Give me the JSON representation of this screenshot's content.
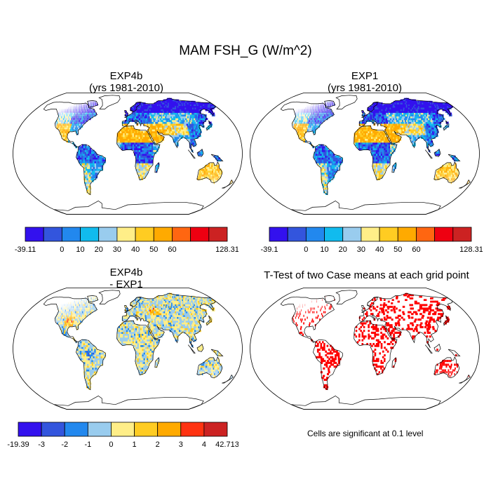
{
  "title": "MAM FSH_G (W/m^2)",
  "panels": [
    {
      "title": "EXP4b",
      "subtitle": "(yrs 1981-2010)"
    },
    {
      "title": "EXP1",
      "subtitle": "(yrs 1981-2010)"
    },
    {
      "title": "EXP4b",
      "subtitle": "- EXP1"
    },
    {
      "title": "T-Test of two Case means at each grid point",
      "subtitle": ""
    }
  ],
  "ttest_note": "Cells are significant at 0.1 level",
  "colorbars": [
    {
      "colors": [
        "#3311ee",
        "#3355dd",
        "#2288ee",
        "#11bbee",
        "#99ccee",
        "#ffee88",
        "#ffcc22",
        "#ffaa00",
        "#ff6611",
        "#ee0011",
        "#cc2222"
      ],
      "labels": [
        "-39.11",
        "0",
        "10",
        "20",
        "30",
        "40",
        "50",
        "60",
        "128.31"
      ]
    },
    {
      "colors": [
        "#3311ee",
        "#3355dd",
        "#2288ee",
        "#11bbee",
        "#99ccee",
        "#ffee88",
        "#ffcc22",
        "#ffaa00",
        "#ff6611",
        "#ee0011",
        "#cc2222"
      ],
      "labels": [
        "-39.1",
        "0",
        "10",
        "20",
        "30",
        "40",
        "50",
        "60",
        "128.31"
      ]
    },
    {
      "colors": [
        "#3311ee",
        "#3355dd",
        "#2288ee",
        "#99ccee",
        "#ffee88",
        "#ffcc22",
        "#ffaa00",
        "#ff3311",
        "#cc2222"
      ],
      "labels": [
        "-19.39",
        "-3",
        "-2",
        "-1",
        "0",
        "1",
        "2",
        "3",
        "4",
        "42.713"
      ]
    }
  ],
  "chart_data": [
    {
      "type": "heatmap",
      "title": "EXP4b",
      "subtitle": "(yrs 1981-2010)",
      "projection": "Robinson",
      "variable": "FSH_G",
      "units": "W/m^2",
      "season": "MAM",
      "range": [
        -39.11,
        128.31
      ],
      "levels": [
        0,
        10,
        20,
        30,
        40,
        50,
        60
      ],
      "region_means": {
        "arctic_canada_siberia": -10,
        "north_america_west": 60,
        "amazon": 10,
        "andes_patagonia": 40,
        "sahara_arabia": 60,
        "central_africa": 5,
        "southern_africa": 45,
        "central_asia": 50,
        "south_asia": 55,
        "australia": 55,
        "europe": 15
      }
    },
    {
      "type": "heatmap",
      "title": "EXP1",
      "subtitle": "(yrs 1981-2010)",
      "projection": "Robinson",
      "variable": "FSH_G",
      "units": "W/m^2",
      "season": "MAM",
      "range": [
        -39.1,
        128.31
      ],
      "levels": [
        0,
        10,
        20,
        30,
        40,
        50,
        60
      ],
      "region_means": {
        "arctic_canada_siberia": -10,
        "north_america_west": 60,
        "amazon": 10,
        "andes_patagonia": 40,
        "sahara_arabia": 60,
        "central_africa": 5,
        "southern_africa": 45,
        "central_asia": 50,
        "south_asia": 55,
        "australia": 55,
        "europe": 15
      }
    },
    {
      "type": "heatmap",
      "title": "EXP4b",
      "subtitle": "- EXP1",
      "projection": "Robinson",
      "units": "W/m^2",
      "range": [
        -19.39,
        42.713
      ],
      "levels": [
        -3,
        -2,
        -1,
        0,
        1,
        2,
        3,
        4
      ],
      "region_means": {
        "north_america": 0.5,
        "amazon": -0.5,
        "africa": 0.5,
        "eurasia": 0.5,
        "australia": -0.5,
        "us_great_plains": 2.5,
        "east_europe": 2.5
      }
    },
    {
      "type": "heatmap",
      "title": "T-Test of two Case means at each grid point",
      "projection": "Robinson",
      "significance_level": 0.1,
      "significant_color": "#ff0000"
    }
  ]
}
